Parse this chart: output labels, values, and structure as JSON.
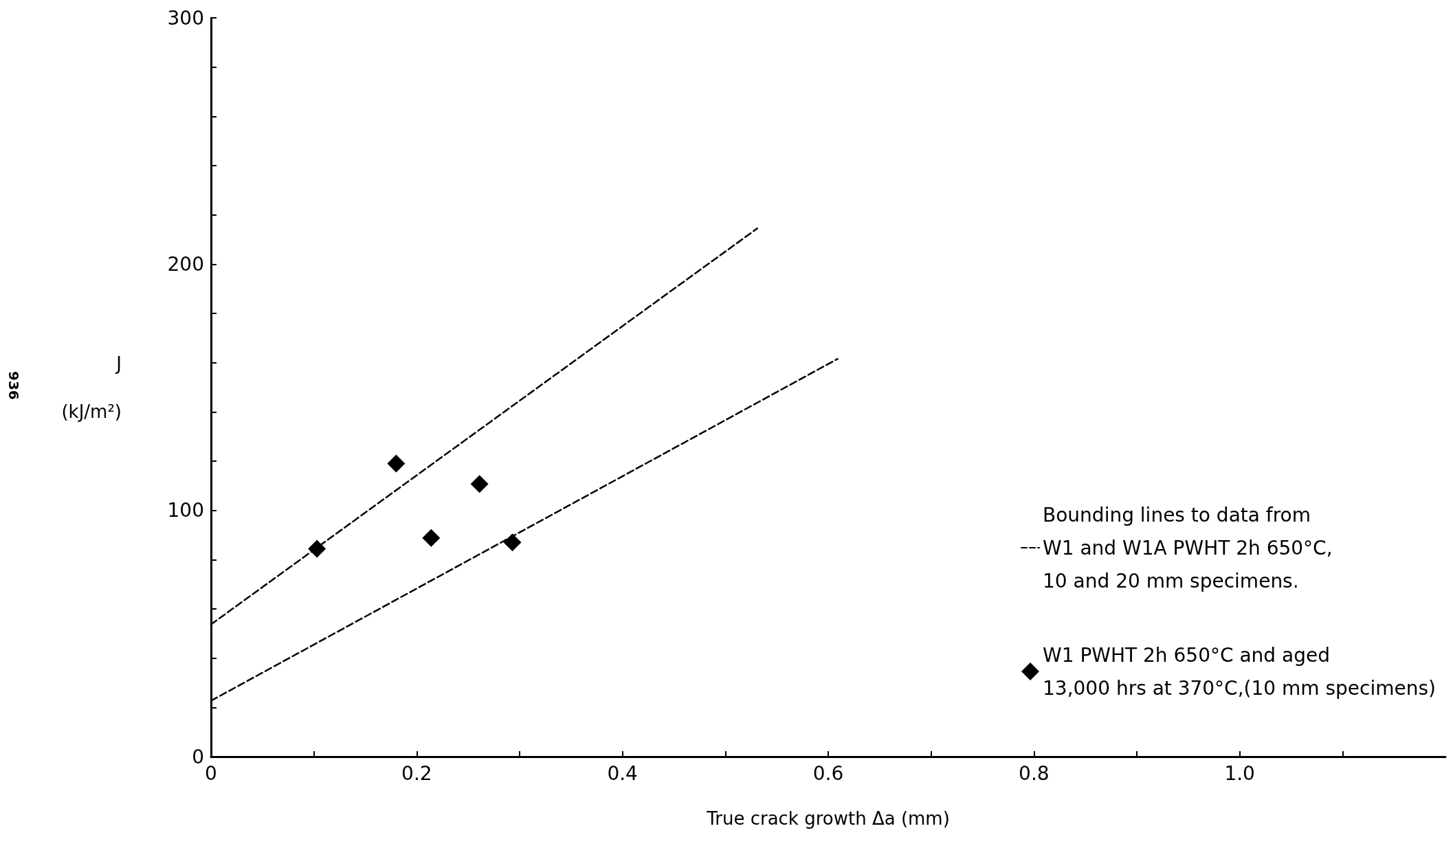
{
  "chart_data": {
    "type": "scatter",
    "xlabel": "True crack growth Δa (mm)",
    "ylabel": "J\n(kJ/m²)",
    "annotations": [
      "936"
    ],
    "series": [
      {
        "name": "Bounding lines to data from\nW1 and W1A PWHT 2h 650°C,\n10 and 20 mm specimens.",
        "type": "line",
        "line_style": "dashed",
        "marker": "none",
        "color": "#000000",
        "x": [
          0,
          0.531
        ],
        "values": [
          53.7,
          214.5
        ]
      },
      {
        "type": "line",
        "line_style": "dashed",
        "marker": "none",
        "color": "#000000",
        "x": [
          0,
          0.609
        ],
        "values": [
          22.7,
          161.5
        ]
      },
      {
        "name": "W1 PWHT 2h 650°C and aged\n13,000 hrs at 370°C,(10 mm specimens)",
        "marker": "diamond",
        "color": "#000000",
        "x": [
          0.103,
          0.18,
          0.214,
          0.261,
          0.293
        ],
        "values": [
          84.4,
          119,
          88.8,
          110.7,
          87
        ]
      }
    ],
    "xlim": [
      0,
      1.2
    ],
    "xticks": [
      0,
      {
        "value": 0.1,
        "label": null
      },
      0.2,
      {
        "value": 0.3,
        "label": null
      },
      0.4,
      {
        "value": 0.5,
        "label": null
      },
      0.6,
      {
        "value": 0.7,
        "label": null
      },
      0.8,
      {
        "value": 0.9,
        "label": null
      },
      {
        "value": 1.0,
        "label": "1.0"
      },
      {
        "value": 1.1,
        "label": null
      }
    ],
    "ylim": [
      0,
      300
    ],
    "yticks": [
      0,
      {
        "value": 20,
        "label": null
      },
      {
        "value": 40,
        "label": null
      },
      {
        "value": 60,
        "label": null
      },
      {
        "value": 80,
        "label": null
      },
      100,
      {
        "value": 120,
        "label": null
      },
      {
        "value": 140,
        "label": null
      },
      {
        "value": 160,
        "label": null
      },
      {
        "value": 180,
        "label": null
      },
      200,
      {
        "value": 220,
        "label": null
      },
      {
        "value": 240,
        "label": null
      },
      {
        "value": 260,
        "label": null
      },
      {
        "value": 280,
        "label": null
      },
      300
    ],
    "grid": false,
    "legend": "right"
  }
}
